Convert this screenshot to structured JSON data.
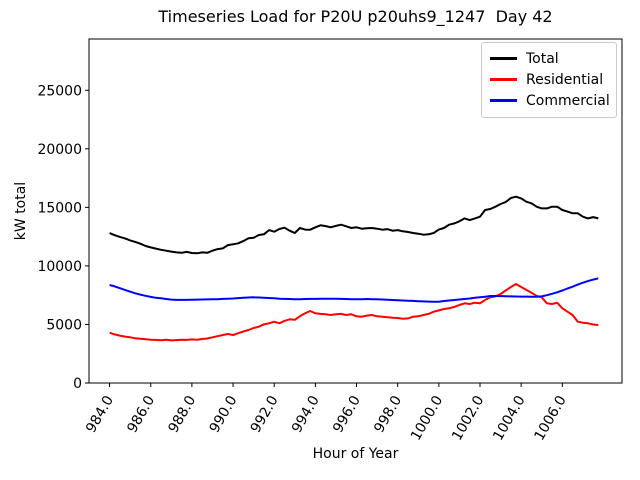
{
  "figure": {
    "background": "#ffffff",
    "spine_color": "#000000",
    "legend_border_color": "#cccccc"
  },
  "chart_data": {
    "type": "line",
    "title": "Timeseries Load for P20U p20uhs9_1247  Day 42",
    "xlabel": "Hour of Year",
    "ylabel": "kW total",
    "grid": false,
    "legend_position": "upper right",
    "xlim": [
      983.0,
      1008.9
    ],
    "ylim": [
      0,
      29380
    ],
    "xticks": [
      984,
      986,
      988,
      990,
      992,
      994,
      996,
      998,
      1000,
      1002,
      1004,
      1006
    ],
    "xtick_labels": [
      "984.0",
      "986.0",
      "988.0",
      "990.0",
      "992.0",
      "994.0",
      "996.0",
      "998.0",
      "1000.0",
      "1002.0",
      "1004.0",
      "1006.0"
    ],
    "yticks": [
      0,
      5000,
      10000,
      15000,
      20000,
      25000
    ],
    "ytick_labels": [
      "0",
      "5000",
      "10000",
      "15000",
      "20000",
      "25000"
    ],
    "x_start": 984.0,
    "x_step": 0.25,
    "x_end": 1007.75,
    "series": [
      {
        "name": "Total",
        "color": "#000000",
        "values": [
          12800,
          12620,
          12480,
          12350,
          12180,
          12050,
          11900,
          11700,
          11580,
          11480,
          11380,
          11300,
          11220,
          11150,
          11120,
          11200,
          11100,
          11080,
          11150,
          11120,
          11300,
          11440,
          11500,
          11780,
          11850,
          11930,
          12120,
          12360,
          12400,
          12640,
          12700,
          13060,
          12920,
          13150,
          13260,
          13010,
          12810,
          13240,
          13100,
          13095,
          13300,
          13470,
          13400,
          13295,
          13420,
          13520,
          13380,
          13240,
          13300,
          13180,
          13220,
          13240,
          13180,
          13095,
          13140,
          13010,
          13060,
          12955,
          12900,
          12810,
          12750,
          12665,
          12700,
          12810,
          13100,
          13240,
          13520,
          13635,
          13810,
          14060,
          13915,
          14060,
          14200,
          14775,
          14860,
          15060,
          15290,
          15460,
          15800,
          15915,
          15770,
          15485,
          15345,
          15060,
          14915,
          14915,
          15060,
          15060,
          14775,
          14635,
          14490,
          14490,
          14200,
          14060,
          14170,
          14060
        ]
      },
      {
        "name": "Residential",
        "color": "#ff0000",
        "values": [
          4300,
          4150,
          4050,
          3960,
          3900,
          3820,
          3780,
          3740,
          3700,
          3680,
          3650,
          3700,
          3640,
          3660,
          3700,
          3680,
          3720,
          3700,
          3760,
          3800,
          3900,
          4000,
          4100,
          4185,
          4100,
          4250,
          4400,
          4530,
          4700,
          4810,
          5010,
          5100,
          5235,
          5100,
          5300,
          5440,
          5400,
          5700,
          5950,
          6150,
          5950,
          5900,
          5870,
          5810,
          5870,
          5900,
          5810,
          5870,
          5700,
          5660,
          5760,
          5810,
          5700,
          5660,
          5620,
          5580,
          5550,
          5480,
          5520,
          5660,
          5700,
          5810,
          5900,
          6090,
          6200,
          6320,
          6380,
          6500,
          6660,
          6805,
          6750,
          6860,
          6805,
          7100,
          7318,
          7400,
          7600,
          7900,
          8200,
          8455,
          8200,
          7950,
          7700,
          7450,
          7318,
          6805,
          6750,
          6860,
          6380,
          6090,
          5805,
          5235,
          5150,
          5100,
          5000,
          4955
        ]
      },
      {
        "name": "Commercial",
        "color": "#0000ff",
        "values": [
          8370,
          8250,
          8100,
          7950,
          7800,
          7660,
          7550,
          7450,
          7350,
          7280,
          7230,
          7175,
          7120,
          7100,
          7100,
          7100,
          7110,
          7120,
          7130,
          7140,
          7150,
          7160,
          7180,
          7200,
          7220,
          7250,
          7280,
          7300,
          7320,
          7300,
          7280,
          7260,
          7230,
          7200,
          7180,
          7170,
          7160,
          7160,
          7170,
          7180,
          7180,
          7190,
          7200,
          7200,
          7190,
          7180,
          7170,
          7160,
          7150,
          7160,
          7170,
          7160,
          7150,
          7130,
          7110,
          7090,
          7070,
          7050,
          7030,
          7010,
          6990,
          6970,
          6950,
          6945,
          6940,
          7000,
          7050,
          7090,
          7130,
          7170,
          7220,
          7280,
          7318,
          7370,
          7430,
          7430,
          7420,
          7410,
          7400,
          7390,
          7380,
          7375,
          7370,
          7370,
          7400,
          7500,
          7620,
          7750,
          7900,
          8070,
          8224,
          8400,
          8570,
          8700,
          8830,
          8940
        ]
      }
    ]
  }
}
